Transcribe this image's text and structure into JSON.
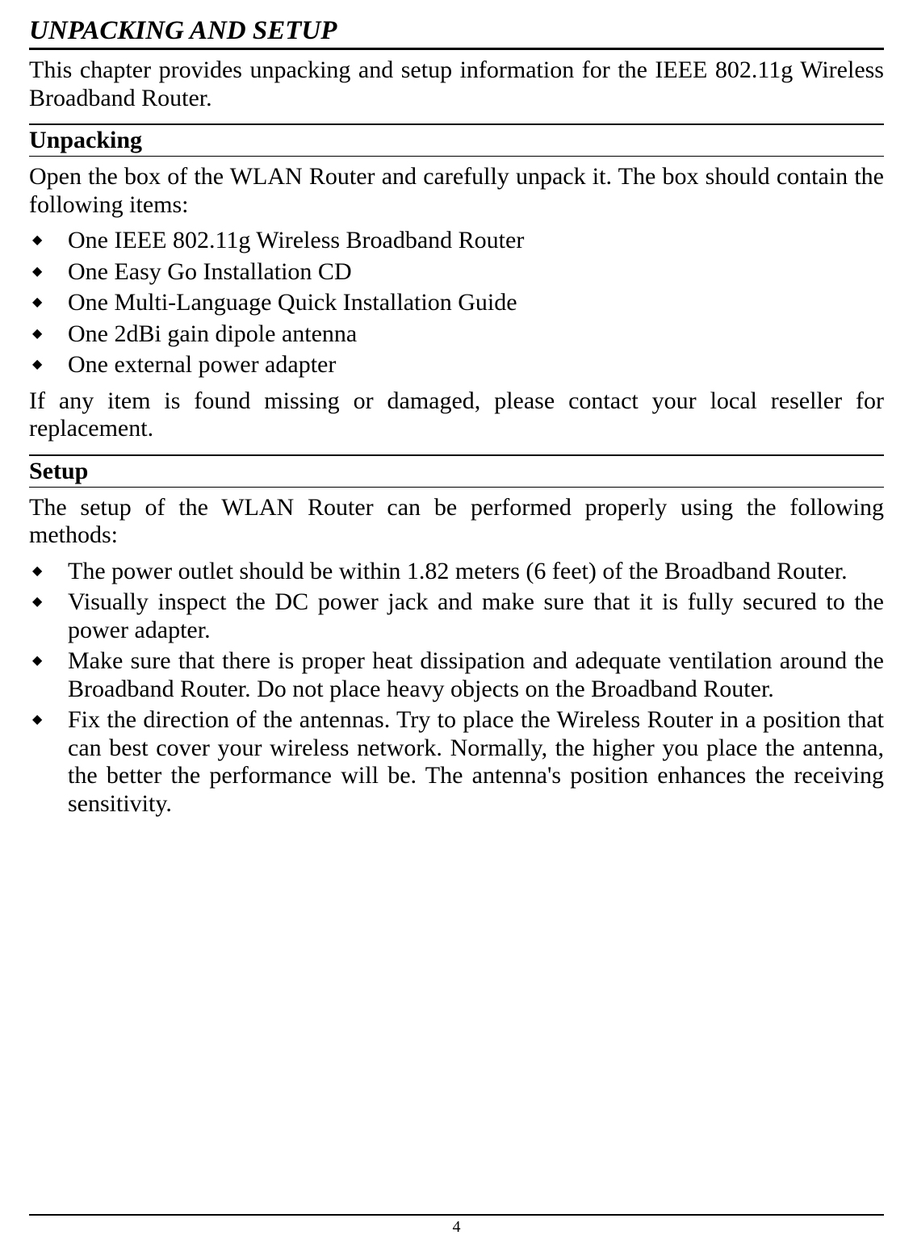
{
  "title": "UNPACKING AND SETUP",
  "intro": "This chapter provides unpacking and setup information for the IEEE 802.11g Wireless Broadband Router.",
  "unpacking": {
    "header": "Unpacking",
    "intro": "Open the box of the WLAN Router and carefully unpack it. The box should contain the following items:",
    "items": [
      "One IEEE 802.11g Wireless Broadband Router",
      "One Easy Go Installation CD",
      "One Multi-Language Quick Installation Guide",
      "One 2dBi gain dipole antenna",
      "One external power adapter"
    ],
    "closing": "If any item is found missing or damaged, please contact your local reseller for replacement."
  },
  "setup": {
    "header": "Setup",
    "intro": "The setup of the WLAN Router can be performed properly using the following methods:",
    "items": [
      "The power outlet should be within 1.82 meters (6 feet) of the Broadband Router.",
      "Visually inspect the DC power jack and make sure that it is fully secured to the power adapter.",
      "Make sure that there is proper heat dissipation and adequate ventilation around the Broadband Router.  Do not place heavy objects on the Broadband Router.",
      "Fix the direction of the antennas. Try to place the Wireless Router in a position that can best cover your wireless network. Normally, the higher you place the antenna, the better the performance will be. The antenna's position enhances the receiving sensitivity."
    ]
  },
  "page_number": "4"
}
